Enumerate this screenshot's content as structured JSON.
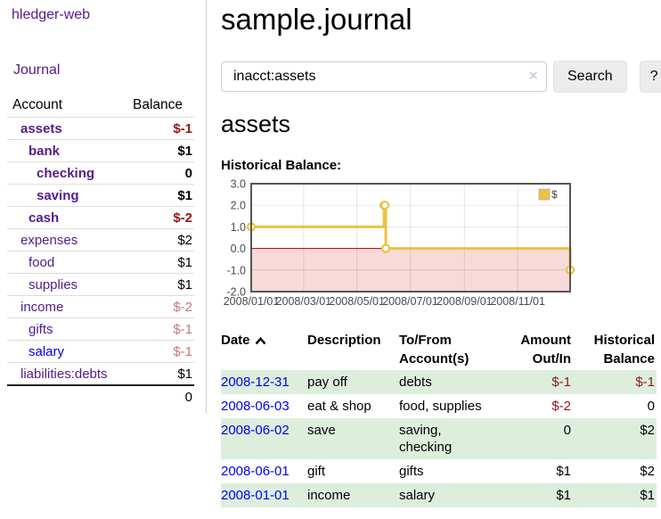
{
  "colors": {
    "link_purple": "#551a8b",
    "link_blue": "#0000ee",
    "negative_strong": "#961616",
    "negative_soft": "#c27878",
    "negative_table": "#8b1a1a",
    "row_shade_green": "#ddeedd",
    "chart_line_yellow": "#edc240",
    "chart_negative_region": "#f9dada",
    "chart_zero_line": "#990000"
  },
  "sidebar": {
    "brand": "hledger-web",
    "nav": [
      {
        "label": "Journal"
      }
    ],
    "accounts_table": {
      "headers": [
        "Account",
        "Balance"
      ],
      "rows": [
        {
          "name": "assets",
          "indent": 1,
          "bold": true,
          "balance": "$-1",
          "balance_tone": "neg-strong"
        },
        {
          "name": "bank",
          "indent": 2,
          "bold": true,
          "balance": "$1",
          "balance_tone": ""
        },
        {
          "name": "checking",
          "indent": 3,
          "bold": true,
          "balance": "0",
          "balance_tone": ""
        },
        {
          "name": "saving",
          "indent": 3,
          "bold": true,
          "balance": "$1",
          "balance_tone": ""
        },
        {
          "name": "cash",
          "indent": 2,
          "bold": true,
          "balance": "$-2",
          "balance_tone": "neg-strong"
        },
        {
          "name": "expenses",
          "indent": 1,
          "bold": false,
          "balance": "$2",
          "balance_tone": ""
        },
        {
          "name": "food",
          "indent": 2,
          "bold": false,
          "balance": "$1",
          "balance_tone": ""
        },
        {
          "name": "supplies",
          "indent": 2,
          "bold": false,
          "balance": "$1",
          "balance_tone": ""
        },
        {
          "name": "income",
          "indent": 1,
          "bold": false,
          "balance": "$-2",
          "balance_tone": "neg-soft"
        },
        {
          "name": "gifts",
          "indent": 2,
          "bold": false,
          "balance": "$-1",
          "balance_tone": "neg-soft"
        },
        {
          "name": "salary",
          "indent": 2,
          "bold": false,
          "balance": "$-1",
          "balance_tone": "neg-soft",
          "link_tone": "blue"
        },
        {
          "name": "liabilities:debts",
          "indent": 1,
          "bold": false,
          "balance": "$1",
          "balance_tone": ""
        }
      ],
      "total": "0"
    }
  },
  "header": {
    "title": "sample.journal"
  },
  "search": {
    "query": "inacct:assets",
    "clear_icon": "✕",
    "button_label": "Search",
    "help_label": "?"
  },
  "account_page": {
    "title": "assets",
    "chart_label": "Historical Balance:"
  },
  "chart_data": {
    "type": "line",
    "style": "step",
    "title": "Historical Balance:",
    "xlabel": "",
    "ylabel": "",
    "grid": true,
    "legend": {
      "label": "$",
      "position": "top-right"
    },
    "x_range": [
      "2008-01-01",
      "2008-12-31"
    ],
    "x_tick_dates": [
      "2008-01-01",
      "2008-03-01",
      "2008-05-01",
      "2008-07-01",
      "2008-09-01",
      "2008-11-01"
    ],
    "x_tick_labels": [
      "2008/01/01",
      "2008/03/01",
      "2008/05/01",
      "2008/07/01",
      "2008/09/01",
      "2008/11/01"
    ],
    "ylim": [
      -2.0,
      3.0
    ],
    "y_ticks": [
      3.0,
      2.0,
      1.0,
      0.0,
      -1.0,
      -2.0
    ],
    "series": [
      {
        "name": "$",
        "color": "#edc240",
        "points": [
          [
            "2008-01-01",
            1.0
          ],
          [
            "2008-06-01",
            2.0
          ],
          [
            "2008-06-02",
            2.0
          ],
          [
            "2008-06-03",
            0.0
          ],
          [
            "2008-12-31",
            -1.0
          ]
        ]
      }
    ],
    "negative_region_color": "#f9dada",
    "zero_line_color": "#990000"
  },
  "transactions": {
    "headers": {
      "date": "Date",
      "description": "Description",
      "tofrom_line1": "To/From",
      "tofrom_line2": "Account(s)",
      "amount_line1": "Amount",
      "amount_line2": "Out/In",
      "balance_line1": "Historical",
      "balance_line2": "Balance"
    },
    "rows": [
      {
        "date": "2008-12-31",
        "description": "pay off",
        "accounts": "debts",
        "amount": "$-1",
        "amount_tone": "neg",
        "balance": "$-1",
        "balance_tone": "neg",
        "shaded": true
      },
      {
        "date": "2008-06-03",
        "description": "eat & shop",
        "accounts": "food, supplies",
        "amount": "$-2",
        "amount_tone": "neg",
        "balance": "0",
        "balance_tone": "",
        "shaded": false
      },
      {
        "date": "2008-06-02",
        "description": "save",
        "accounts": "saving,\nchecking",
        "amount": "0",
        "amount_tone": "",
        "balance": "$2",
        "balance_tone": "",
        "shaded": true
      },
      {
        "date": "2008-06-01",
        "description": "gift",
        "accounts": "gifts",
        "amount": "$1",
        "amount_tone": "",
        "balance": "$2",
        "balance_tone": "",
        "shaded": false
      },
      {
        "date": "2008-01-01",
        "description": "income",
        "accounts": "salary",
        "amount": "$1",
        "amount_tone": "",
        "balance": "$1",
        "balance_tone": "",
        "shaded": true
      }
    ]
  }
}
